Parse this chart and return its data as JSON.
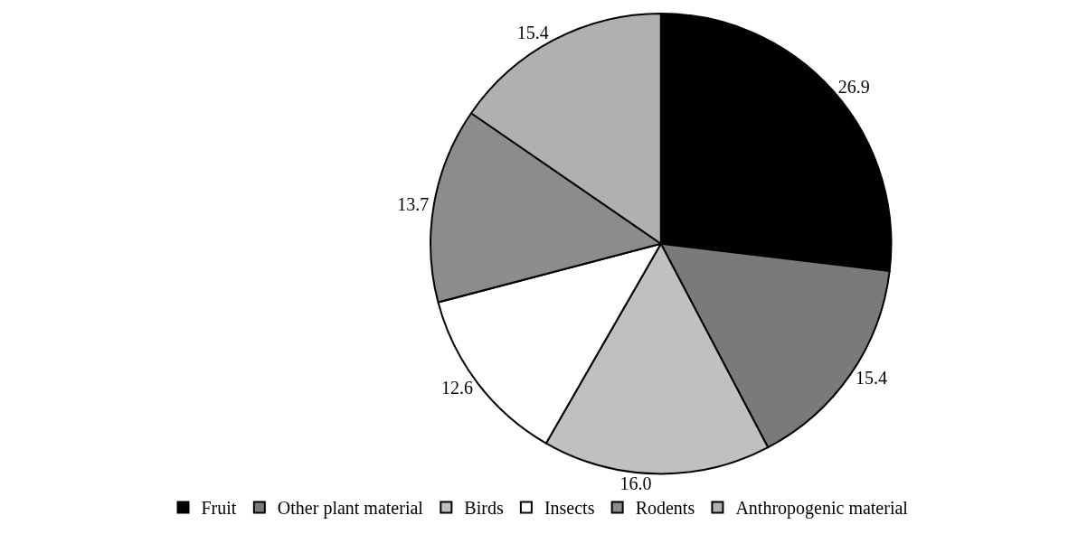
{
  "chart_data": {
    "type": "pie",
    "categories": [
      "Fruit",
      "Other plant material",
      "Birds",
      "Insects",
      "Rodents",
      "Anthropogenic material"
    ],
    "values": [
      26.9,
      15.4,
      16.0,
      12.6,
      13.7,
      15.4
    ],
    "value_labels": [
      "26.9",
      "15.4",
      "16.0",
      "12.6",
      "13.7",
      "15.4"
    ],
    "colors": [
      "#000000",
      "#7a7a7a",
      "#c0c0c0",
      "#ffffff",
      "#8c8c8c",
      "#b0b0b0"
    ],
    "legend": "bottom"
  }
}
